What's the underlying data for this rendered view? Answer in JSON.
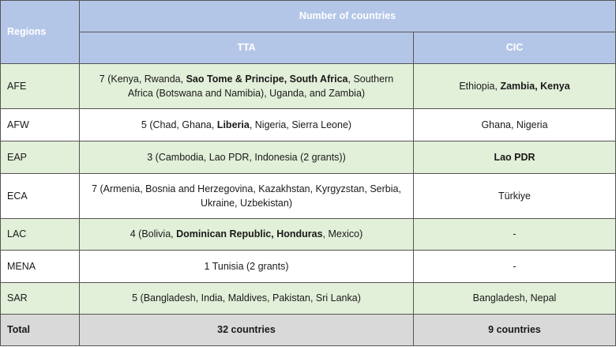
{
  "header": {
    "regions_label": "Regions",
    "number_of_countries_label": "Number of countries",
    "tta_label": "TTA",
    "cic_label": "CIC"
  },
  "rows": [
    {
      "region": "AFE",
      "shade": "green",
      "tta": [
        {
          "text": "7 (Kenya, Rwanda, ",
          "bold": false
        },
        {
          "text": "Sao Tome & Principe, South Africa",
          "bold": true
        },
        {
          "text": ", Southern Africa (Botswana and Namibia), Uganda, and Zambia)",
          "bold": false
        }
      ],
      "cic": [
        {
          "text": "Ethiopia, ",
          "bold": false
        },
        {
          "text": "Zambia, Kenya",
          "bold": true
        }
      ]
    },
    {
      "region": "AFW",
      "shade": "white",
      "tta": [
        {
          "text": "5 (Chad, Ghana, ",
          "bold": false
        },
        {
          "text": "Liberia",
          "bold": true
        },
        {
          "text": ", Nigeria, Sierra Leone)",
          "bold": false
        }
      ],
      "cic": [
        {
          "text": "Ghana, Nigeria",
          "bold": false
        }
      ]
    },
    {
      "region": "EAP",
      "shade": "green",
      "tta": [
        {
          "text": "3 (Cambodia, Lao PDR, Indonesia (2 grants))",
          "bold": false
        }
      ],
      "cic": [
        {
          "text": "Lao PDR",
          "bold": true
        }
      ]
    },
    {
      "region": "ECA",
      "shade": "white",
      "tta": [
        {
          "text": "7 (Armenia, Bosnia and Herzegovina, Kazakhstan, Kyrgyzstan, Serbia, Ukraine, Uzbekistan)",
          "bold": false
        }
      ],
      "cic": [
        {
          "text": "Türkiye",
          "bold": false
        }
      ]
    },
    {
      "region": "LAC",
      "shade": "green",
      "tta": [
        {
          "text": "4 (Bolivia, ",
          "bold": false
        },
        {
          "text": "Dominican Republic, Honduras",
          "bold": true
        },
        {
          "text": ", Mexico)",
          "bold": false
        }
      ],
      "cic": [
        {
          "text": "-",
          "bold": false
        }
      ]
    },
    {
      "region": "MENA",
      "shade": "white",
      "tta": [
        {
          "text": "1 Tunisia (2 grants)",
          "bold": false
        }
      ],
      "cic": [
        {
          "text": "-",
          "bold": false
        }
      ]
    },
    {
      "region": "SAR",
      "shade": "green",
      "tta": [
        {
          "text": "5 (Bangladesh, India, Maldives, Pakistan, Sri Lanka)",
          "bold": false
        }
      ],
      "cic": [
        {
          "text": "Bangladesh, Nepal",
          "bold": false
        }
      ]
    }
  ],
  "total": {
    "label": "Total",
    "tta": "32 countries",
    "cic": "9 countries"
  },
  "colors": {
    "header_bg": "#b4c6e7",
    "green_row_bg": "#e2efd9",
    "total_bg": "#d9d9d9"
  }
}
